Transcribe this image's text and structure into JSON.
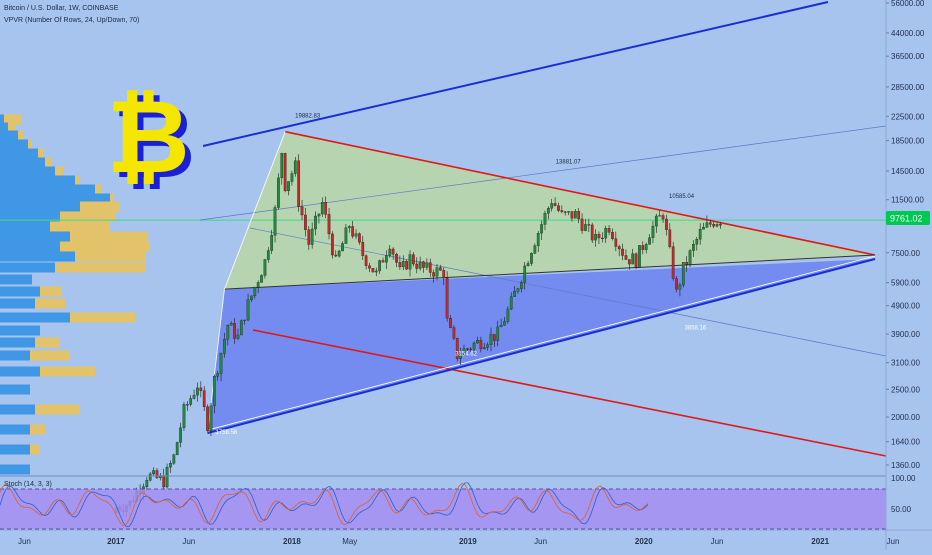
{
  "header": {
    "title": "Bitcoin / U.S. Dollar, 1W, COINBASE",
    "indicator": "VPVR (Number Of Rows, 24, Up/Down, 70)"
  },
  "colors": {
    "background": "#a7c4ee",
    "candle_up": "#1f8a3a",
    "candle_down": "#c62828",
    "upper_channel": "#1a2fd0",
    "lower_channel": "#e01818",
    "triangle_top_fill": "#b9d6a8",
    "triangle_bottom_fill": "#6f86f0",
    "price_tag": "#00c853",
    "bitcoin_logo": "#f5e600",
    "vp_blue": "#3f97e6",
    "vp_gold": "#e2c36a"
  },
  "logo": {
    "icon": "bitcoin-logo"
  },
  "price_tag": {
    "value": "9761.02"
  },
  "chart_data": {
    "type": "candlestick",
    "title": "Bitcoin / U.S. Dollar, 1W, COINBASE",
    "y_scale": "log",
    "y_ticks": [
      "56000.00",
      "44000.00",
      "36500.00",
      "28500.00",
      "22500.00",
      "18500.00",
      "14500.00",
      "11500.00",
      "9761.02",
      "7500.00",
      "5900.00",
      "4900.00",
      "3900.00",
      "3100.00",
      "2500.00",
      "2000.00",
      "1640.00",
      "1360.00"
    ],
    "x_ticks": [
      "Jun",
      "2017",
      "Jun",
      "2018",
      "May",
      "2019",
      "Jun",
      "2020",
      "Jun",
      "2021",
      "Jun"
    ],
    "x_range": [
      "2016-06",
      "2021-09"
    ],
    "close": [
      [
        "2016-12-26",
        960
      ],
      [
        "2017-01-30",
        1000
      ],
      [
        "2017-03-06",
        1250
      ],
      [
        "2017-04-10",
        1200
      ],
      [
        "2017-05-01",
        1450
      ],
      [
        "2017-05-22",
        2100
      ],
      [
        "2017-06-19",
        2600
      ],
      [
        "2017-07-10",
        1900
      ],
      [
        "2017-07-24",
        2700
      ],
      [
        "2017-08-21",
        4200
      ],
      [
        "2017-09-11",
        3800
      ],
      [
        "2017-09-25",
        4600
      ],
      [
        "2017-10-16",
        5700
      ],
      [
        "2017-11-06",
        7000
      ],
      [
        "2017-11-27",
        10500
      ],
      [
        "2017-12-11",
        17000
      ],
      [
        "2017-12-18",
        13000
      ],
      [
        "2018-01-08",
        15000
      ],
      [
        "2018-01-15",
        11400
      ],
      [
        "2018-02-05",
        8100
      ],
      [
        "2018-03-05",
        11200
      ],
      [
        "2018-04-02",
        6900
      ],
      [
        "2018-04-30",
        9400
      ],
      [
        "2018-05-28",
        7400
      ],
      [
        "2018-06-25",
        6300
      ],
      [
        "2018-07-23",
        8200
      ],
      [
        "2018-08-13",
        6400
      ],
      [
        "2018-09-03",
        7200
      ],
      [
        "2018-10-01",
        6600
      ],
      [
        "2018-11-12",
        6400
      ],
      [
        "2018-11-19",
        4300
      ],
      [
        "2018-12-10",
        3300
      ],
      [
        "2019-01-14",
        3600
      ],
      [
        "2019-03-04",
        3900
      ],
      [
        "2019-04-01",
        5000
      ],
      [
        "2019-05-13",
        7800
      ],
      [
        "2019-06-24",
        11500
      ],
      [
        "2019-07-15",
        10100
      ],
      [
        "2019-08-12",
        10200
      ],
      [
        "2019-09-23",
        8300
      ],
      [
        "2019-10-21",
        9300
      ],
      [
        "2019-11-25",
        7200
      ],
      [
        "2019-12-16",
        7100
      ],
      [
        "2020-01-13",
        8900
      ],
      [
        "2020-02-10",
        10300
      ],
      [
        "2020-03-09",
        5400
      ],
      [
        "2020-03-23",
        6600
      ],
      [
        "2020-04-27",
        8800
      ],
      [
        "2020-05-25",
        9700
      ],
      [
        "2020-06-08",
        9761
      ]
    ],
    "annotations": [
      {
        "label": "19882.83",
        "date": "2017-12-18",
        "value": 19882.83
      },
      {
        "label": "13881.07",
        "date": "2019-06-24",
        "value": 13881.07
      },
      {
        "label": "10585.04",
        "date": "2020-02-10",
        "value": 10585.04
      },
      {
        "label": "3154.62",
        "date": "2018-12-10",
        "value": 3154.62
      },
      {
        "label": "3858.16",
        "date": "2020-03-09",
        "value": 3858.16
      },
      {
        "label": "1758.56",
        "date": "2017-07-10",
        "value": 1758.56
      }
    ],
    "last_price": 9761.02,
    "indicator": {
      "name": "Stoch (14, 3, 3)",
      "y_ticks": [
        "100.00",
        "50.00"
      ],
      "upper_band": 80,
      "lower_band": 20
    }
  }
}
